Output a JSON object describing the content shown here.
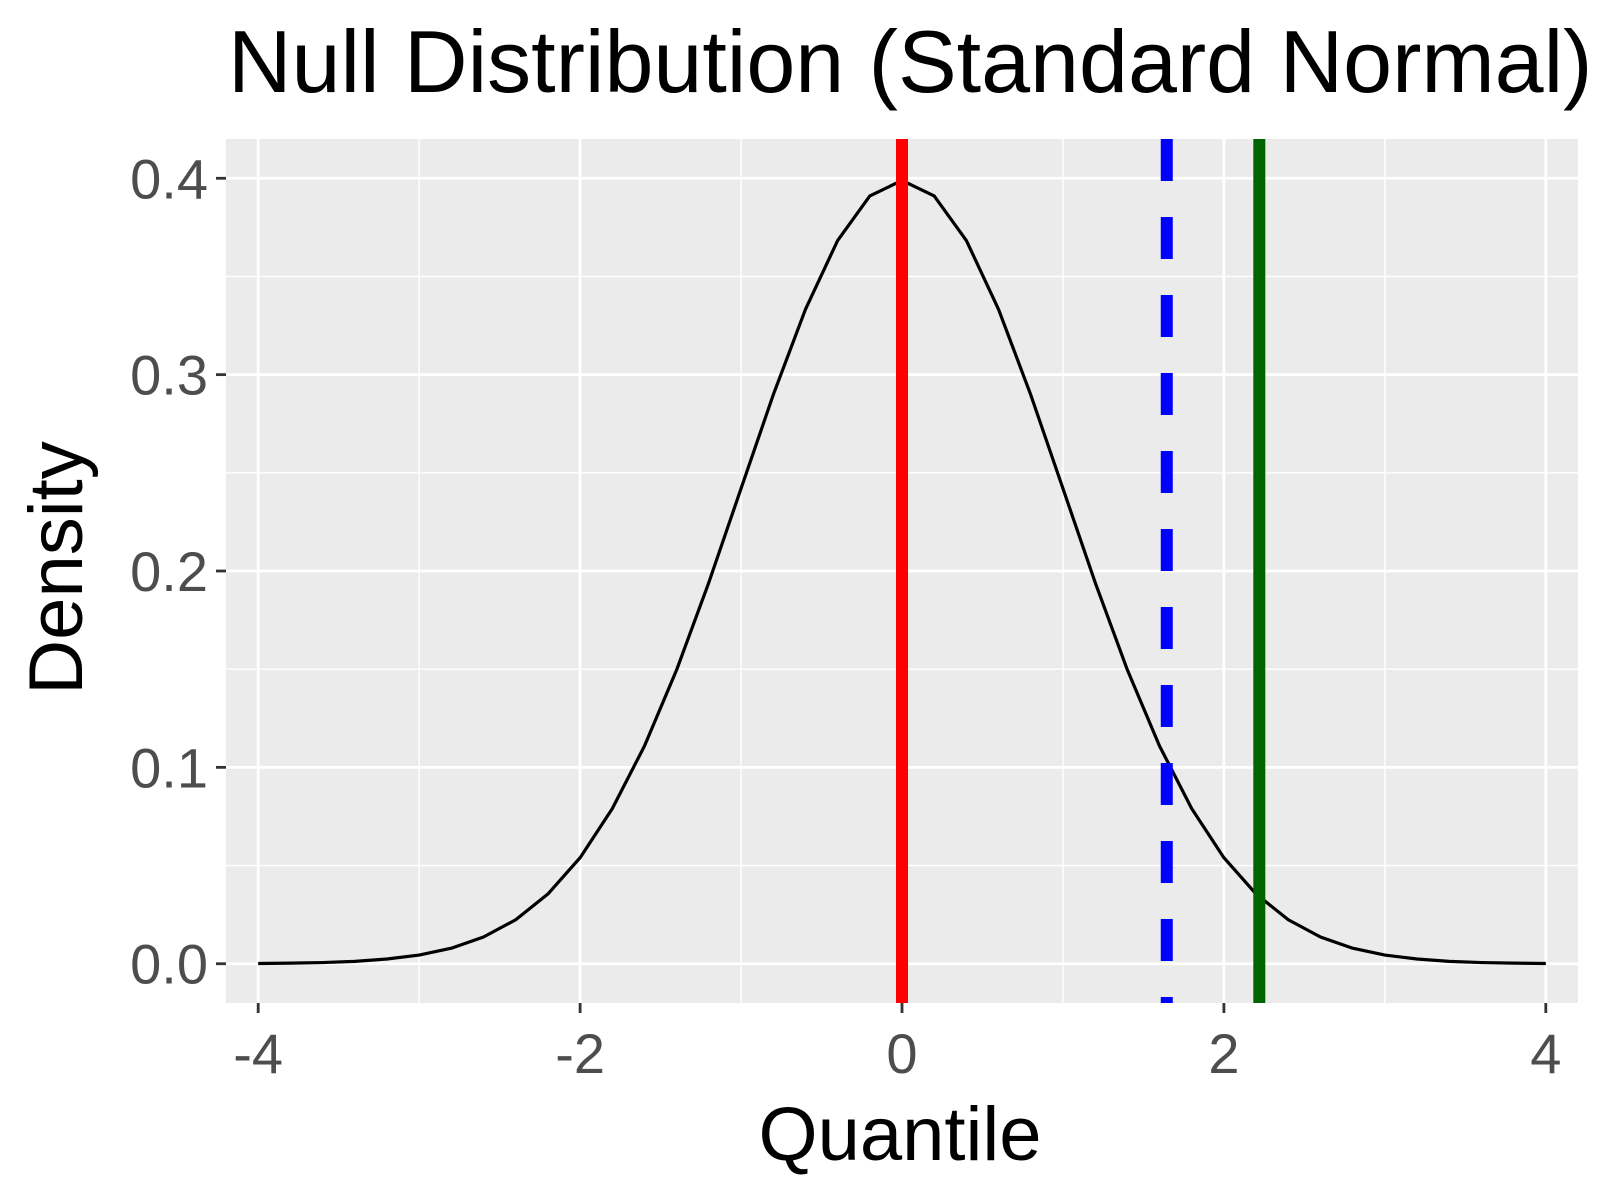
{
  "chart_data": {
    "type": "line",
    "title": "Null Distribution (Standard Normal)",
    "xlabel": "Quantile",
    "ylabel": "Density",
    "xlim": [
      -4.2,
      4.2
    ],
    "ylim": [
      -0.02,
      0.42
    ],
    "x_ticks": [
      -4,
      -2,
      0,
      2,
      4
    ],
    "x_tick_labels": [
      "-4",
      "-2",
      "0",
      "2",
      "4"
    ],
    "y_ticks": [
      0.0,
      0.1,
      0.2,
      0.3,
      0.4
    ],
    "y_tick_labels": [
      "0.0",
      "0.1",
      "0.2",
      "0.3",
      "0.4"
    ],
    "grid": true,
    "panel_background": "#ebebeb",
    "series": [
      {
        "type": "line",
        "color": "#000000",
        "x": [
          -4.0,
          -3.8,
          -3.6,
          -3.4,
          -3.2,
          -3.0,
          -2.8,
          -2.6,
          -2.4,
          -2.2,
          -2.0,
          -1.8,
          -1.6,
          -1.4,
          -1.2,
          -1.0,
          -0.8,
          -0.6,
          -0.4,
          -0.2,
          0.0,
          0.2,
          0.4,
          0.6,
          0.8,
          1.0,
          1.2,
          1.4,
          1.6,
          1.8,
          2.0,
          2.2,
          2.4,
          2.6,
          2.8,
          3.0,
          3.2,
          3.4,
          3.6,
          3.8,
          4.0
        ],
        "y": [
          0.0001,
          0.0003,
          0.0006,
          0.0012,
          0.0024,
          0.0044,
          0.0079,
          0.0136,
          0.0224,
          0.0355,
          0.054,
          0.079,
          0.1109,
          0.1497,
          0.1942,
          0.242,
          0.2897,
          0.3332,
          0.3683,
          0.391,
          0.3989,
          0.391,
          0.3683,
          0.3332,
          0.2897,
          0.242,
          0.1942,
          0.1497,
          0.1109,
          0.079,
          0.054,
          0.0355,
          0.0224,
          0.0136,
          0.0079,
          0.0044,
          0.0024,
          0.0012,
          0.0006,
          0.0003,
          0.0001
        ]
      }
    ],
    "vlines": [
      {
        "x": 0.0,
        "color": "#ff0000",
        "style": "solid"
      },
      {
        "x": 1.645,
        "color": "#0000ff",
        "style": "dashed"
      },
      {
        "x": 2.22,
        "color": "#006400",
        "style": "solid"
      }
    ]
  }
}
